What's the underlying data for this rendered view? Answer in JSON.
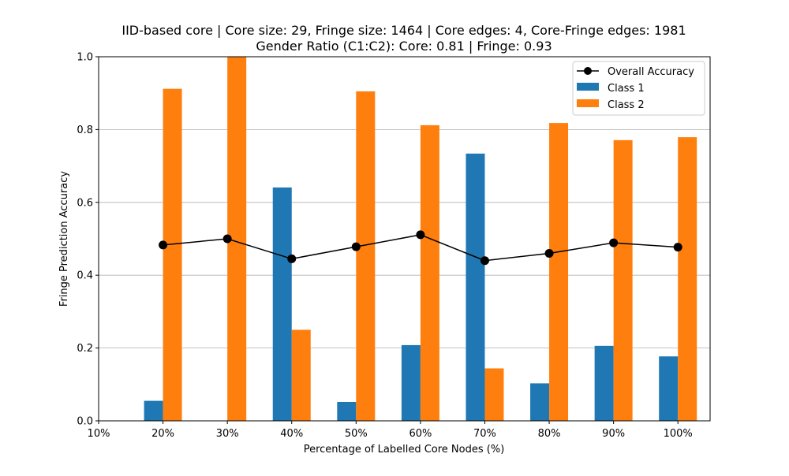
{
  "chart_data": {
    "type": "bar",
    "title_line1": "IID-based core | Core size: 29, Fringe size: 1464 | Core edges: 4, Core-Fringe edges: 1981",
    "title_line2": "Gender Ratio (C1:C2): Core: 0.81 | Fringe: 0.93",
    "xlabel": "Percentage of Labelled Core Nodes (%)",
    "ylabel": "Fringe Prediction Accuracy",
    "categories": [
      "10%",
      "20%",
      "30%",
      "40%",
      "50%",
      "60%",
      "70%",
      "80%",
      "90%",
      "100%"
    ],
    "ylim": [
      0,
      1.0
    ],
    "yticks": [
      "0.0",
      "0.2",
      "0.4",
      "0.6",
      "0.8",
      "1.0"
    ],
    "grid": "horizontal",
    "legend_position": "top-right",
    "series": [
      {
        "name": "Class 1",
        "kind": "bar",
        "color": "#1f77b4",
        "values": [
          null,
          0.055,
          0.0,
          0.641,
          0.052,
          0.208,
          0.734,
          0.103,
          0.206,
          0.177
        ]
      },
      {
        "name": "Class 2",
        "kind": "bar",
        "color": "#ff7f0e",
        "values": [
          null,
          0.912,
          1.0,
          0.25,
          0.905,
          0.812,
          0.144,
          0.818,
          0.771,
          0.779
        ]
      },
      {
        "name": "Overall Accuracy",
        "kind": "line",
        "color": "#000000",
        "values": [
          null,
          0.483,
          0.5,
          0.445,
          0.478,
          0.511,
          0.44,
          0.46,
          0.489,
          0.477
        ]
      }
    ]
  }
}
